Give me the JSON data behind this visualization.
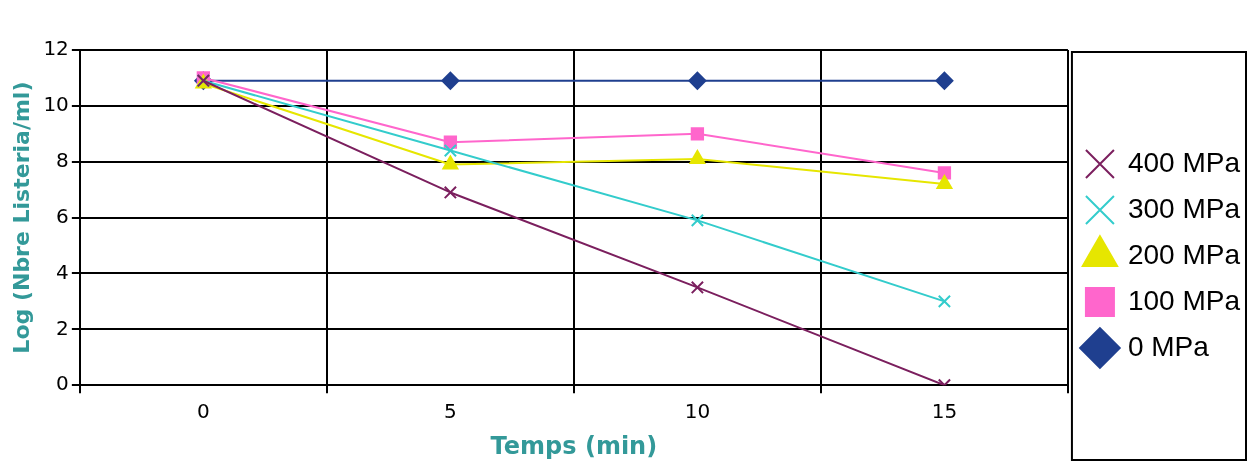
{
  "chart_data": {
    "type": "line",
    "xlabel": "Temps (min)",
    "ylabel": "Log (Nbre Listeria/ml)",
    "categories": [
      "0",
      "5",
      "10",
      "15"
    ],
    "series": [
      {
        "name": "400 MPa",
        "color": "#7b1f5e",
        "marker": "cross",
        "values": [
          10.9,
          6.9,
          3.5,
          0
        ]
      },
      {
        "name": "300 MPa",
        "color": "#33cccc",
        "marker": "cross",
        "values": [
          10.9,
          8.4,
          5.9,
          3.0
        ]
      },
      {
        "name": "200 MPa",
        "color": "#e6e600",
        "marker": "triangle",
        "values": [
          10.8,
          7.9,
          8.1,
          7.2
        ]
      },
      {
        "name": "100 MPa",
        "color": "#ff66cc",
        "marker": "square",
        "values": [
          11.0,
          8.7,
          9.0,
          7.6
        ]
      },
      {
        "name": "0 MPa",
        "color": "#1f3f8f",
        "marker": "diamond",
        "values": [
          10.9,
          10.9,
          10.9,
          10.9
        ]
      }
    ],
    "ylim": [
      0,
      12
    ],
    "yticks": [
      0,
      2,
      4,
      6,
      8,
      10,
      12
    ],
    "grid": true,
    "legend": "right"
  }
}
